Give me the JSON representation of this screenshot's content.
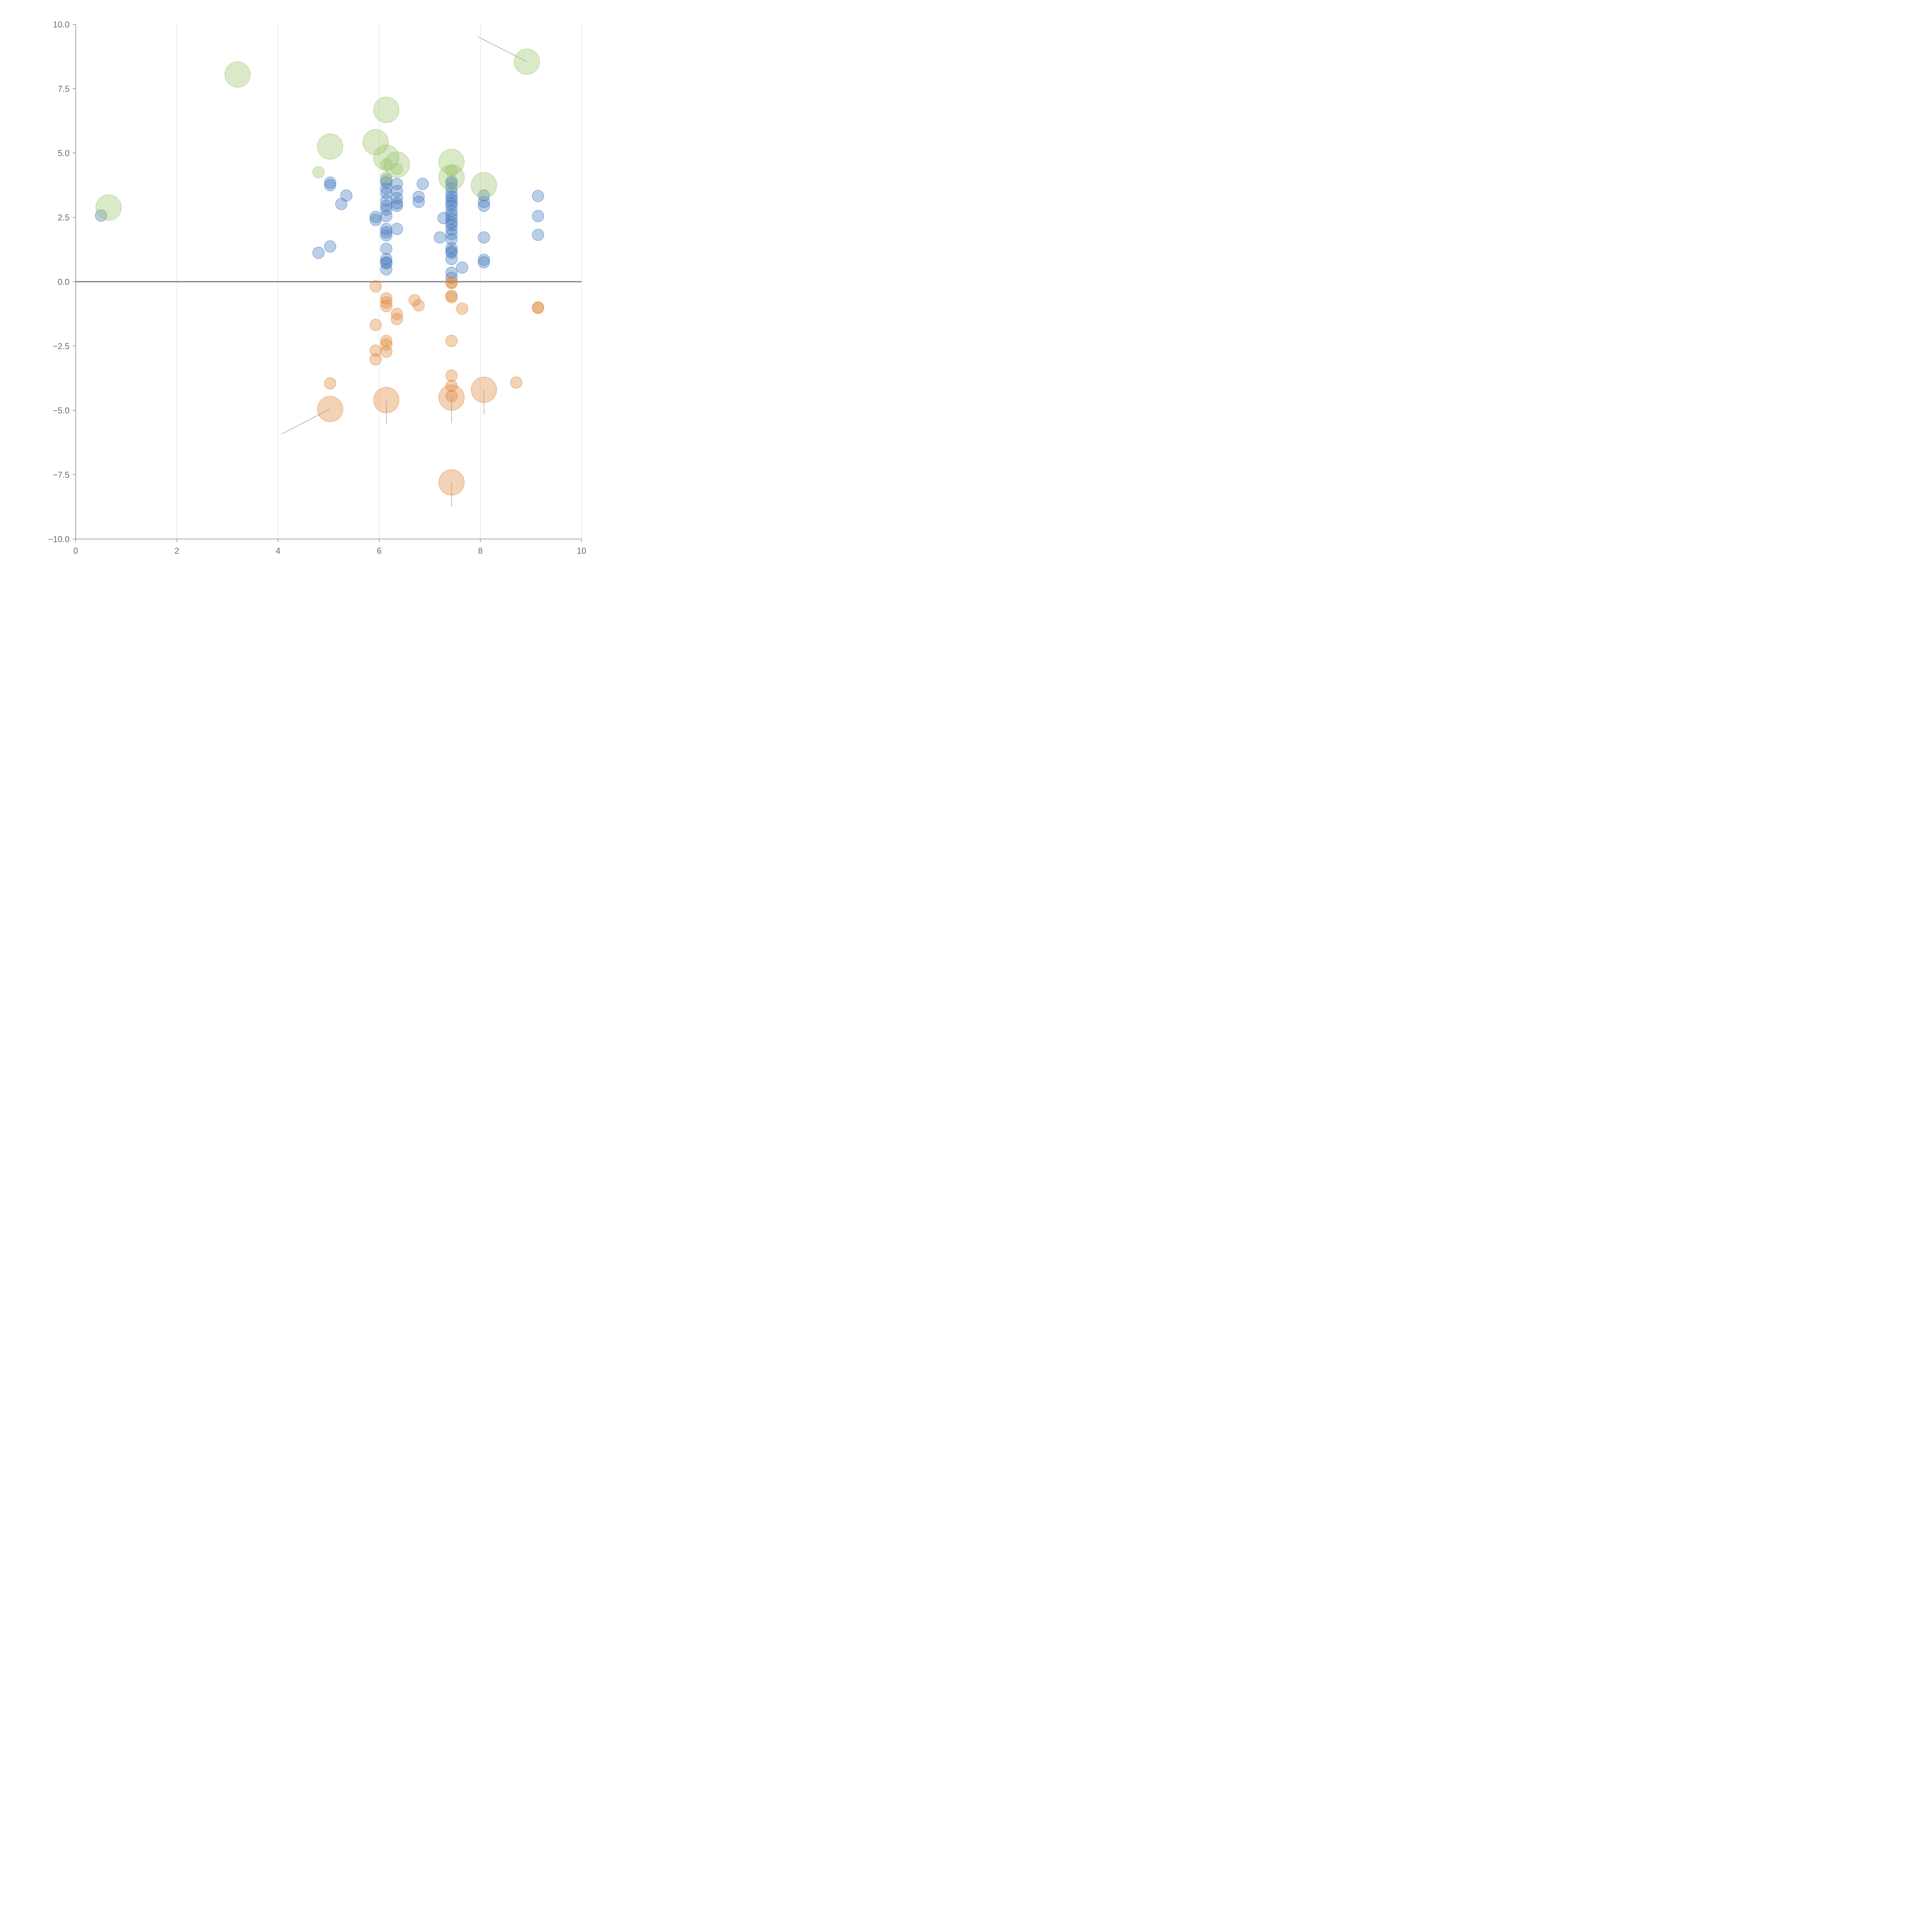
{
  "chart_data": {
    "type": "scatter",
    "title": "",
    "xlabel": "",
    "ylabel": "",
    "xlim": [
      0,
      10
    ],
    "ylim": [
      -10,
      10
    ],
    "grid": "vertical",
    "xticks": [
      0,
      2,
      4,
      6,
      8,
      10
    ],
    "yticks": [
      -10,
      -7.5,
      -5,
      -2.5,
      0,
      2.5,
      5,
      7.5,
      10
    ],
    "xtick_labels": [
      "0",
      "2",
      "4",
      "6",
      "8",
      "10"
    ],
    "ytick_labels": [
      "−10.0",
      "−7.5",
      "−5.0",
      "−2.5",
      "0.0",
      "2.5",
      "5.0",
      "7.5",
      "10.0"
    ],
    "reference_line_y": 0,
    "series": [
      {
        "name": "blue",
        "color": "#4a7ebf",
        "points": [
          [
            0.5,
            2.57,
            1
          ],
          [
            4.8,
            1.12,
            1
          ],
          [
            5.03,
            1.37,
            1
          ],
          [
            5.03,
            3.75,
            1
          ],
          [
            5.03,
            3.85,
            1
          ],
          [
            5.25,
            3.02,
            1
          ],
          [
            5.35,
            3.35,
            1
          ],
          [
            5.93,
            2.4,
            1
          ],
          [
            5.93,
            2.52,
            1
          ],
          [
            6.14,
            0.48,
            1
          ],
          [
            6.14,
            0.72,
            1
          ],
          [
            6.14,
            0.75,
            1
          ],
          [
            6.14,
            0.88,
            1
          ],
          [
            6.14,
            1.28,
            1
          ],
          [
            6.14,
            1.8,
            1
          ],
          [
            6.14,
            1.92,
            1
          ],
          [
            6.14,
            2.05,
            1
          ],
          [
            6.14,
            2.55,
            1
          ],
          [
            6.14,
            2.8,
            1
          ],
          [
            6.14,
            2.95,
            1
          ],
          [
            6.14,
            3.15,
            1
          ],
          [
            6.14,
            3.45,
            1
          ],
          [
            6.14,
            3.62,
            1
          ],
          [
            6.14,
            3.85,
            1
          ],
          [
            6.14,
            3.95,
            1
          ],
          [
            6.35,
            2.05,
            1
          ],
          [
            6.35,
            2.95,
            1
          ],
          [
            6.35,
            3.05,
            1
          ],
          [
            6.35,
            3.25,
            1
          ],
          [
            6.35,
            3.52,
            1
          ],
          [
            6.35,
            3.8,
            1
          ],
          [
            6.78,
            3.1,
            1
          ],
          [
            6.78,
            3.3,
            1
          ],
          [
            6.86,
            3.8,
            1
          ],
          [
            7.2,
            1.72,
            1
          ],
          [
            7.27,
            2.47,
            1
          ],
          [
            7.43,
            0.15,
            1
          ],
          [
            7.43,
            0.35,
            1
          ],
          [
            7.43,
            0.88,
            1
          ],
          [
            7.43,
            1.12,
            1
          ],
          [
            7.43,
            1.18,
            1
          ],
          [
            7.43,
            1.3,
            1
          ],
          [
            7.43,
            1.65,
            1
          ],
          [
            7.43,
            1.85,
            1
          ],
          [
            7.43,
            2.02,
            1
          ],
          [
            7.43,
            2.2,
            1
          ],
          [
            7.43,
            2.3,
            1
          ],
          [
            7.43,
            2.45,
            1
          ],
          [
            7.43,
            2.6,
            1
          ],
          [
            7.43,
            2.75,
            1
          ],
          [
            7.43,
            2.95,
            1
          ],
          [
            7.43,
            3.05,
            1
          ],
          [
            7.43,
            3.18,
            1
          ],
          [
            7.43,
            3.3,
            1
          ],
          [
            7.43,
            3.45,
            1
          ],
          [
            7.43,
            3.65,
            1
          ],
          [
            7.43,
            3.82,
            1
          ],
          [
            7.43,
            3.9,
            1
          ],
          [
            7.64,
            0.55,
            1
          ],
          [
            8.07,
            0.75,
            1
          ],
          [
            8.07,
            0.85,
            1
          ],
          [
            8.07,
            1.72,
            1
          ],
          [
            8.07,
            2.95,
            1
          ],
          [
            8.07,
            3.1,
            1
          ],
          [
            8.07,
            3.35,
            1
          ],
          [
            9.14,
            1.82,
            1
          ],
          [
            9.14,
            2.55,
            1
          ],
          [
            9.14,
            3.33,
            1
          ]
        ]
      },
      {
        "name": "orange",
        "color": "#e08a3c",
        "points": [
          [
            5.03,
            -4.95,
            2.2
          ],
          [
            5.03,
            -3.95,
            1
          ],
          [
            5.93,
            -0.18,
            1
          ],
          [
            5.93,
            -1.68,
            1
          ],
          [
            5.93,
            -2.68,
            1
          ],
          [
            5.93,
            -3.02,
            1
          ],
          [
            6.14,
            -0.65,
            1
          ],
          [
            6.14,
            -0.8,
            1
          ],
          [
            6.14,
            -0.95,
            1
          ],
          [
            6.14,
            -2.3,
            1
          ],
          [
            6.14,
            -2.45,
            1
          ],
          [
            6.14,
            -2.72,
            1
          ],
          [
            6.14,
            -4.6,
            2.2
          ],
          [
            6.35,
            -1.25,
            1
          ],
          [
            6.35,
            -1.45,
            1
          ],
          [
            6.7,
            -0.72,
            1
          ],
          [
            6.78,
            -0.92,
            1
          ],
          [
            7.43,
            -0.02,
            1
          ],
          [
            7.43,
            -0.05,
            1
          ],
          [
            7.43,
            -0.55,
            1
          ],
          [
            7.43,
            -0.6,
            1
          ],
          [
            7.43,
            -2.3,
            1
          ],
          [
            7.43,
            -3.65,
            1
          ],
          [
            7.43,
            -4.05,
            1
          ],
          [
            7.43,
            -4.45,
            1
          ],
          [
            7.43,
            -4.5,
            2.2
          ],
          [
            7.43,
            -7.8,
            2.2
          ],
          [
            7.64,
            -1.05,
            1
          ],
          [
            8.07,
            -4.2,
            2.2
          ],
          [
            8.71,
            -3.92,
            1
          ],
          [
            9.14,
            -1.0,
            1
          ],
          [
            9.14,
            -1.02,
            1
          ]
        ]
      },
      {
        "name": "green",
        "color": "#9ec46e",
        "points": [
          [
            0.65,
            2.88,
            2.2
          ],
          [
            3.2,
            8.05,
            2.2
          ],
          [
            4.8,
            4.25,
            1
          ],
          [
            5.03,
            5.25,
            2.2
          ],
          [
            5.93,
            5.42,
            2.2
          ],
          [
            6.14,
            6.68,
            2.2
          ],
          [
            6.14,
            4.82,
            2.2
          ],
          [
            6.14,
            4.55,
            1
          ],
          [
            6.14,
            4.05,
            1
          ],
          [
            6.35,
            4.55,
            2.2
          ],
          [
            6.35,
            4.38,
            1
          ],
          [
            7.43,
            4.65,
            2.2
          ],
          [
            7.43,
            4.05,
            2.2
          ],
          [
            7.43,
            4.3,
            1
          ],
          [
            8.07,
            3.75,
            2.2
          ],
          [
            8.92,
            8.55,
            2.2
          ]
        ]
      }
    ],
    "leader_lines": [
      {
        "from": [
          8.92,
          8.55
        ],
        "to": [
          7.95,
          9.52
        ],
        "color": "#bdbdbd"
      },
      {
        "from": [
          5.03,
          -4.95
        ],
        "to": [
          4.07,
          -5.92
        ],
        "color": "#bdbdbd"
      },
      {
        "from": [
          6.14,
          -4.6
        ],
        "to": [
          6.14,
          -5.55
        ],
        "color": "#bdbdbd"
      },
      {
        "from": [
          7.43,
          -4.5
        ],
        "to": [
          7.43,
          -5.5
        ],
        "color": "#bdbdbd"
      },
      {
        "from": [
          8.07,
          -4.2
        ],
        "to": [
          8.07,
          -5.15
        ],
        "color": "#bdbdbd"
      },
      {
        "from": [
          7.43,
          -7.8
        ],
        "to": [
          7.43,
          -8.75
        ],
        "color": "#bdbdbd"
      }
    ],
    "colors": {
      "axis": "#8a8a8a",
      "zero_line": "#7a7a7a",
      "grid": "#dcdcdc"
    }
  }
}
